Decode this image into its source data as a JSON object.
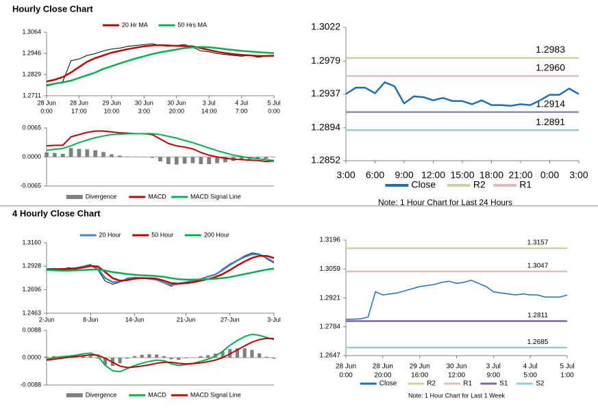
{
  "sections": [
    {
      "title": "Hourly Close Chart"
    },
    {
      "title": "4 Hourly Close Chart"
    }
  ],
  "chart_data": [
    {
      "type": "line",
      "legend": "top",
      "categories": [
        [
          "28 Jun",
          "0:00"
        ],
        null,
        null,
        null,
        [
          "28 Jun",
          "17:00"
        ],
        null,
        null,
        null,
        [
          "29 Jun",
          "10:00"
        ],
        null,
        null,
        null,
        [
          "30 Jun",
          "3:00"
        ],
        null,
        null,
        null,
        [
          "30 Jun",
          "20:00"
        ],
        null,
        null,
        null,
        [
          "3 Jul",
          "14:00"
        ],
        null,
        null,
        null,
        [
          "4 Jul",
          "7:00"
        ],
        null,
        null,
        null,
        [
          "5 Jul",
          "0:00"
        ]
      ],
      "ylim": [
        1.2711,
        1.3064
      ],
      "yticks": [
        1.2711,
        1.2829,
        1.2946,
        1.3064
      ],
      "series": [
        {
          "color": "#000000",
          "values": [
            1.2765,
            1.2775,
            1.279,
            1.2905,
            1.2915,
            1.2935,
            1.2945,
            1.296,
            1.297,
            1.2975,
            1.2985,
            1.299,
            1.2995,
            1.3,
            1.299,
            1.2985,
            1.299,
            1.2995,
            1.298,
            1.296,
            1.2955,
            1.2945,
            1.294,
            1.2935,
            1.293,
            1.2935,
            1.2925,
            1.293,
            1.2935
          ]
        },
        {
          "name": "20 Hr MA",
          "color": "#c00000",
          "values": [
            1.279,
            1.28,
            1.2815,
            1.284,
            1.287,
            1.29,
            1.292,
            1.2935,
            1.295,
            1.296,
            1.297,
            1.2978,
            1.2985,
            1.299,
            1.2992,
            1.299,
            1.2988,
            1.2986,
            1.2985,
            1.2975,
            1.2965,
            1.2955,
            1.2948,
            1.2942,
            1.2938,
            1.2935,
            1.2932,
            1.2932,
            1.2933
          ]
        },
        {
          "name": "50 Hrs MA",
          "color": "#00b050",
          "values": [
            1.277,
            1.2778,
            1.2785,
            1.2795,
            1.281,
            1.2825,
            1.284,
            1.286,
            1.2875,
            1.289,
            1.2905,
            1.2918,
            1.293,
            1.2942,
            1.2952,
            1.296,
            1.2968,
            1.2975,
            1.298,
            1.2982,
            1.298,
            1.2975,
            1.297,
            1.2965,
            1.296,
            1.2957,
            1.2953,
            1.295,
            1.2948
          ]
        }
      ]
    },
    {
      "type": "line",
      "legend": "bottom",
      "ylim": [
        -0.0065,
        0.0065
      ],
      "yticks": [
        -0.0065,
        {
          "value": 0,
          "label": "0.0000"
        },
        0.0065
      ],
      "series": [
        {
          "name": "Divergence",
          "type": "bar",
          "color": "#808080",
          "values": [
            0.001,
            0.0009,
            0.0007,
            0.002,
            0.0018,
            0.0017,
            0.0015,
            0.0011,
            0.0006,
            0.0003,
            0.0001,
            0,
            0,
            -0.0002,
            -0.001,
            -0.0016,
            -0.0017,
            -0.0015,
            -0.0014,
            -0.0016,
            -0.0016,
            -0.0014,
            -0.0012,
            -0.0009,
            -0.0007,
            -0.0005,
            -0.0004,
            -0.0004,
            -0.0001
          ]
        },
        {
          "name": "MACD",
          "color": "#c00000",
          "values": [
            0.0025,
            0.0026,
            0.0026,
            0.0045,
            0.005,
            0.0055,
            0.0058,
            0.0058,
            0.0056,
            0.0054,
            0.0053,
            0.0052,
            0.0052,
            0.005,
            0.004,
            0.003,
            0.0025,
            0.0022,
            0.0018,
            0.001,
            0.0004,
            0,
            -0.0003,
            -0.0005,
            -0.0006,
            -0.0007,
            -0.0008,
            -0.001,
            -0.0009
          ]
        },
        {
          "name": "MACD Signal Line",
          "color": "#00b050",
          "values": [
            0.0015,
            0.0017,
            0.0019,
            0.0025,
            0.0032,
            0.0038,
            0.0043,
            0.0047,
            0.005,
            0.0051,
            0.0052,
            0.0052,
            0.0052,
            0.0052,
            0.005,
            0.0046,
            0.0042,
            0.0037,
            0.0032,
            0.0026,
            0.002,
            0.0014,
            0.0009,
            0.0004,
            0.0001,
            -0.0002,
            -0.0004,
            -0.0006,
            -0.0008
          ]
        }
      ]
    },
    {
      "type": "line",
      "legend": "bottom",
      "categories": [
        "3:00",
        null,
        null,
        "6:00",
        null,
        null,
        "9:00",
        null,
        null,
        "12:00",
        null,
        null,
        "15:00",
        null,
        null,
        "18:00",
        null,
        null,
        "21:00",
        null,
        null,
        "0:00",
        null,
        null,
        "3:00"
      ],
      "ylim": [
        1.2852,
        1.3022
      ],
      "yticks": [
        1.2852,
        1.2894,
        1.2937,
        1.2979,
        1.3022
      ],
      "series": [
        {
          "name": "Close",
          "color": "#1f6eb5",
          "values": [
            1.2937,
            1.2945,
            1.2945,
            1.2938,
            1.2952,
            1.2947,
            1.2925,
            1.2934,
            1.2933,
            1.2929,
            1.2932,
            1.2928,
            1.2928,
            1.2924,
            1.2929,
            1.2923,
            1.2923,
            1.2922,
            1.2924,
            1.2923,
            1.2929,
            1.2936,
            1.2936,
            1.2944,
            1.2937
          ]
        }
      ],
      "levels": [
        {
          "name": "R2",
          "value": 1.2983,
          "color": "#c3d69b"
        },
        {
          "name": "R1",
          "value": 1.296,
          "label": "1.2960",
          "color": "#e6b9b8"
        },
        {
          "value": 1.2914,
          "color": "#8e86a8"
        },
        {
          "value": 1.2891,
          "color": "#93cddd"
        }
      ],
      "note": "Note: 1 Hour Chart for Last 24 Hours"
    },
    {
      "type": "line",
      "legend": "top",
      "categories": [
        "2-Jun",
        null,
        null,
        null,
        null,
        null,
        "8-Jun",
        null,
        null,
        null,
        null,
        null,
        "14-Jun",
        null,
        null,
        null,
        null,
        null,
        null,
        "21-Jun",
        null,
        null,
        null,
        null,
        null,
        "27-Jun",
        null,
        null,
        null,
        null,
        null,
        "3-Jul"
      ],
      "ylim": [
        1.2463,
        1.316
      ],
      "yticks": [
        1.2463,
        1.2696,
        1.2928,
        {
          "value": 1.316,
          "label": "1.3160"
        }
      ],
      "series": [
        {
          "color": "#000000",
          "values": [
            1.29,
            1.2905,
            1.2895,
            1.2915,
            1.2905,
            1.293,
            1.2945,
            1.289,
            1.278,
            1.275,
            1.277,
            1.281,
            1.282,
            1.281,
            1.28,
            1.279,
            1.276,
            1.273,
            1.276,
            1.277,
            1.279,
            1.28,
            1.283,
            1.284,
            1.29,
            1.295,
            1.299,
            1.303,
            1.306,
            1.305,
            1.3,
            1.296
          ]
        },
        {
          "name": "20 Hour",
          "color": "#4f81bd",
          "values": [
            1.29,
            1.2902,
            1.2898,
            1.2905,
            1.291,
            1.2925,
            1.2935,
            1.29,
            1.281,
            1.277,
            1.2775,
            1.28,
            1.2815,
            1.2812,
            1.2805,
            1.2795,
            1.2765,
            1.274,
            1.2755,
            1.277,
            1.2785,
            1.28,
            1.2825,
            1.2845,
            1.289,
            1.294,
            1.2985,
            1.302,
            1.3045,
            1.3045,
            1.301,
            1.297
          ]
        },
        {
          "name": "50 Hour",
          "color": "#c00000",
          "values": [
            1.2895,
            1.2898,
            1.29,
            1.29,
            1.2905,
            1.2915,
            1.293,
            1.2925,
            1.287,
            1.281,
            1.2785,
            1.279,
            1.2805,
            1.281,
            1.281,
            1.2805,
            1.2785,
            1.276,
            1.2755,
            1.276,
            1.277,
            1.2785,
            1.28,
            1.282,
            1.285,
            1.289,
            1.2935,
            1.2975,
            1.301,
            1.303,
            1.303,
            1.301
          ]
        },
        {
          "name": "200 Hour",
          "color": "#00b050",
          "values": [
            1.289,
            1.2888,
            1.2885,
            1.2885,
            1.2887,
            1.289,
            1.2895,
            1.2895,
            1.2885,
            1.287,
            1.286,
            1.285,
            1.2843,
            1.2838,
            1.2835,
            1.283,
            1.2822,
            1.281,
            1.28,
            1.2795,
            1.2795,
            1.2797,
            1.28,
            1.2805,
            1.281,
            1.282,
            1.2835,
            1.285,
            1.2865,
            1.288,
            1.2895,
            1.2905
          ]
        }
      ]
    },
    {
      "type": "line",
      "legend": "bottom",
      "ylim": [
        -0.0088,
        0.0088
      ],
      "yticks": [
        -0.0088,
        {
          "value": 0,
          "label": "0.0000"
        },
        0.0088
      ],
      "series": [
        {
          "name": "Divergence",
          "type": "bar",
          "color": "#808080",
          "values": [
            0.0003,
            0.0005,
            0.0005,
            0.0004,
            0.0004,
            0.0006,
            0.0006,
            -0.0003,
            -0.0023,
            -0.0027,
            -0.0018,
            -0.0003,
            0.0005,
            0.0009,
            0.0011,
            0.001,
            0.0005,
            -0.0005,
            -0.0007,
            -0.0002,
            0.0001,
            0.0005,
            0.0008,
            0.0013,
            0.002,
            0.0028,
            0.003,
            0.003,
            0.0025,
            0.0014,
            0.0003,
            -0.0003
          ]
        },
        {
          "name": "MACD",
          "color": "#00b050",
          "values": [
            -0.0005,
            0,
            0.0003,
            0.0005,
            0.0008,
            0.0012,
            0.0015,
            0.0005,
            -0.0025,
            -0.0042,
            -0.0045,
            -0.0035,
            -0.0025,
            -0.0018,
            -0.0012,
            -0.0008,
            -0.001,
            -0.002,
            -0.0025,
            -0.0022,
            -0.0018,
            -0.0012,
            -0.0005,
            0.0005,
            0.002,
            0.004,
            0.0055,
            0.0068,
            0.0075,
            0.0072,
            0.0065,
            0.0058
          ]
        },
        {
          "name": "MACD Signal Line",
          "color": "#c00000",
          "values": [
            -0.0008,
            -0.0005,
            -0.0002,
            0.0001,
            0.0004,
            0.0006,
            0.0009,
            0.0008,
            -0.0002,
            -0.0015,
            -0.0027,
            -0.0032,
            -0.003,
            -0.0027,
            -0.0023,
            -0.0018,
            -0.0015,
            -0.0015,
            -0.0018,
            -0.002,
            -0.0019,
            -0.0017,
            -0.0013,
            -0.0008,
            0,
            0.0012,
            0.0025,
            0.0038,
            0.005,
            0.0058,
            0.0062,
            0.0061
          ]
        }
      ]
    },
    {
      "type": "line",
      "legend": "bottom",
      "categories": [
        [
          "28 Jun",
          "0:00"
        ],
        null,
        null,
        null,
        null,
        [
          "28 Jun",
          "20:00"
        ],
        null,
        null,
        null,
        null,
        [
          "29 Jun",
          "16:00"
        ],
        null,
        null,
        null,
        null,
        [
          "30 Jun",
          "12:00"
        ],
        null,
        null,
        null,
        null,
        [
          "3 Jul",
          "9:00"
        ],
        null,
        null,
        null,
        null,
        [
          "4 Jul",
          "5:00"
        ],
        null,
        null,
        null,
        null,
        [
          "5 Jul",
          "1:00"
        ]
      ],
      "ylim": [
        1.2647,
        1.3196
      ],
      "yticks": [
        1.2647,
        1.2784,
        1.2921,
        1.3059,
        1.3196
      ],
      "series": [
        {
          "name": "Close",
          "color": "#1f6eb5",
          "values": [
            1.282,
            1.282,
            1.2822,
            1.283,
            1.295,
            1.2935,
            1.294,
            1.2945,
            1.2955,
            1.2965,
            1.2975,
            1.298,
            1.2985,
            1.2995,
            1.3,
            1.299,
            1.2995,
            1.3005,
            1.299,
            1.2975,
            1.295,
            1.2945,
            1.294,
            1.2935,
            1.294,
            1.2935,
            1.2935,
            1.2925,
            1.2925,
            1.2925,
            1.2935
          ]
        }
      ],
      "levels": [
        {
          "name": "R2",
          "value": 1.3157,
          "color": "#c3d69b"
        },
        {
          "name": "R1",
          "value": 1.3047,
          "color": "#e6b9b8"
        },
        {
          "name": "S1",
          "value": 1.2811,
          "color": "#8064a2"
        },
        {
          "name": "S2",
          "value": 1.2685,
          "color": "#93cddd"
        }
      ],
      "note": "Note: 1 Hour Chart for Last 1 Week"
    }
  ]
}
